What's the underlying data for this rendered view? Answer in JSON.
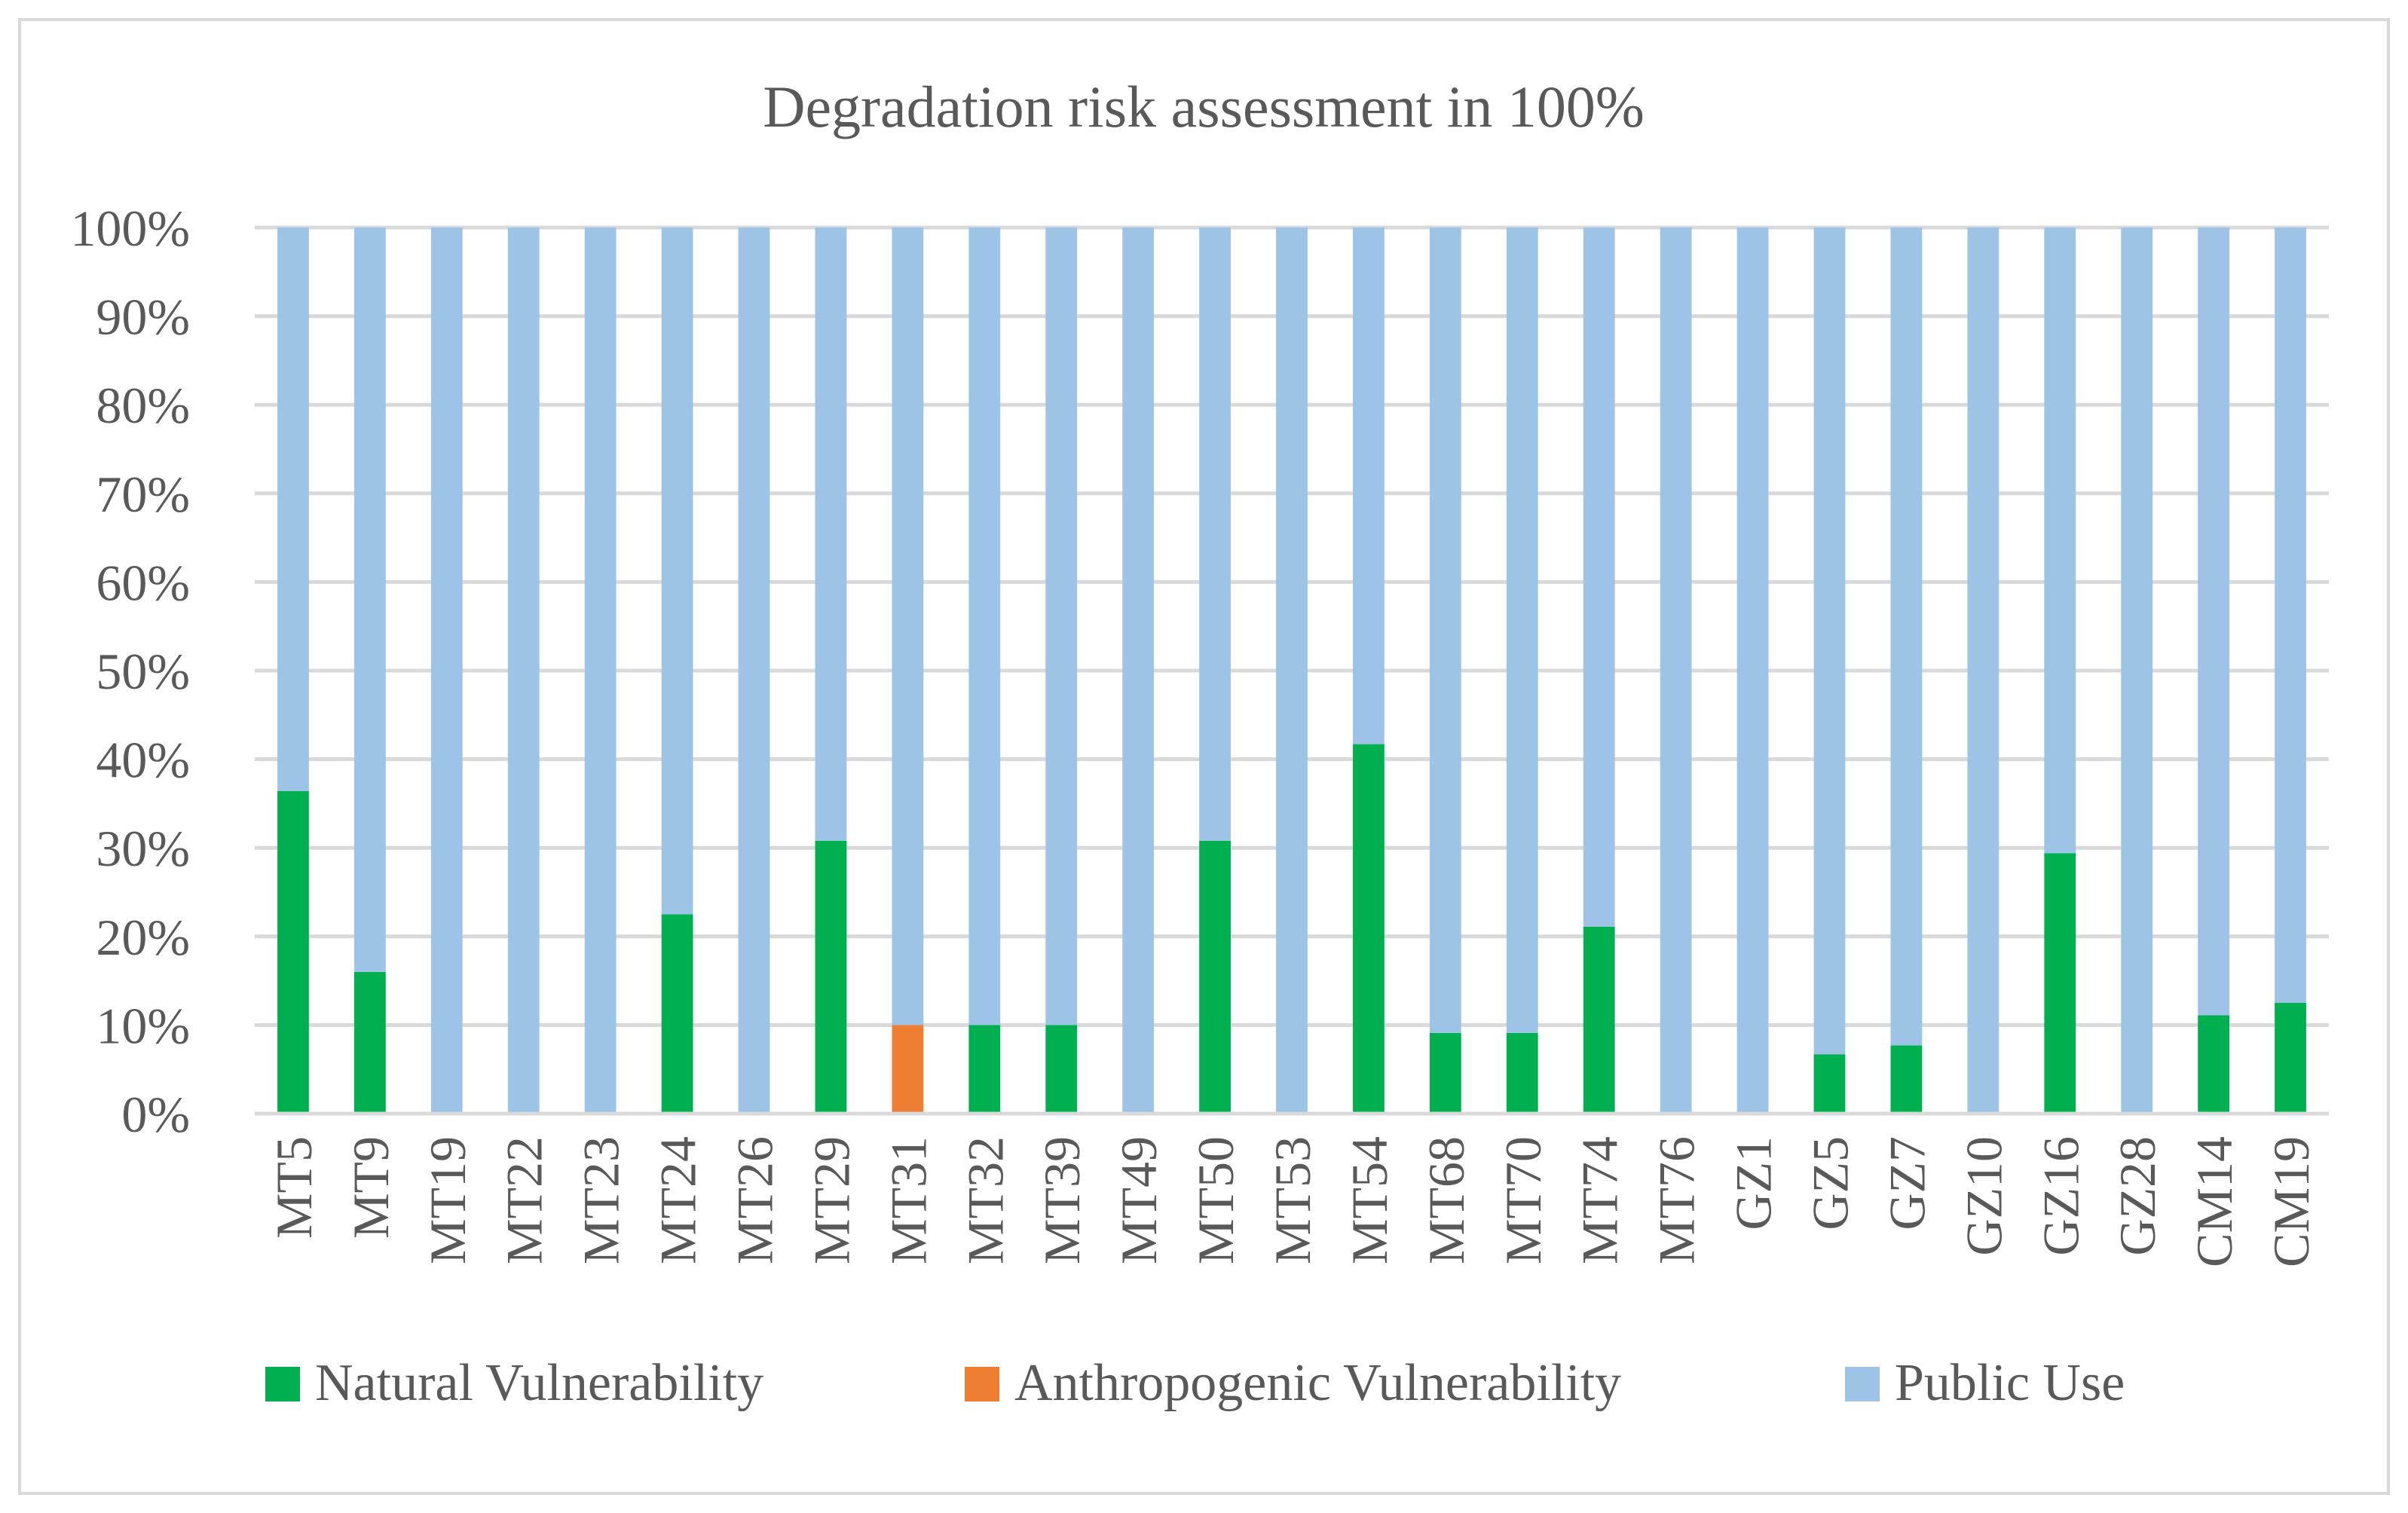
{
  "chart_data": {
    "type": "bar",
    "stacked": true,
    "percent": true,
    "title": "Degradation risk assessment in 100%",
    "xlabel": "",
    "ylabel": "",
    "ylim": [
      0,
      100
    ],
    "yticks": [
      "0%",
      "10%",
      "20%",
      "30%",
      "40%",
      "50%",
      "60%",
      "70%",
      "80%",
      "90%",
      "100%"
    ],
    "grid": true,
    "legend_position": "bottom",
    "categories": [
      "MT5",
      "MT9",
      "MT19",
      "MT22",
      "MT23",
      "MT24",
      "MT26",
      "MT29",
      "MT31",
      "MT32",
      "MT39",
      "MT49",
      "MT50",
      "MT53",
      "MT54",
      "MT68",
      "MT70",
      "MT74",
      "MT76",
      "GZ1",
      "GZ5",
      "GZ7",
      "GZ10",
      "GZ16",
      "GZ28",
      "CM14",
      "CM19"
    ],
    "series": [
      {
        "name": "Natural Vulnerability",
        "color": "#00b050",
        "values": [
          36.4,
          16.0,
          0,
          0,
          0,
          22.5,
          0,
          30.8,
          0,
          10.0,
          10.0,
          0,
          30.8,
          0,
          41.7,
          9.1,
          9.1,
          21.1,
          0,
          0,
          6.7,
          7.7,
          0,
          29.4,
          0,
          11.1,
          12.5
        ]
      },
      {
        "name": "Anthropogenic Vulnerability",
        "color": "#ed7d31",
        "values": [
          0,
          0,
          0,
          0,
          0,
          0,
          0,
          0,
          10.0,
          0,
          0,
          0,
          0,
          0,
          0,
          0,
          0,
          0,
          0,
          0,
          0,
          0,
          0,
          0,
          0,
          0,
          0
        ]
      },
      {
        "name": "Public Use",
        "color": "#9dc3e6",
        "values": [
          63.6,
          84.0,
          100,
          100,
          100,
          77.5,
          100,
          69.2,
          90.0,
          90.0,
          90.0,
          100,
          69.2,
          100,
          58.3,
          90.9,
          90.9,
          78.9,
          100,
          100,
          93.3,
          92.3,
          100,
          70.6,
          100,
          88.9,
          87.5
        ]
      }
    ]
  }
}
